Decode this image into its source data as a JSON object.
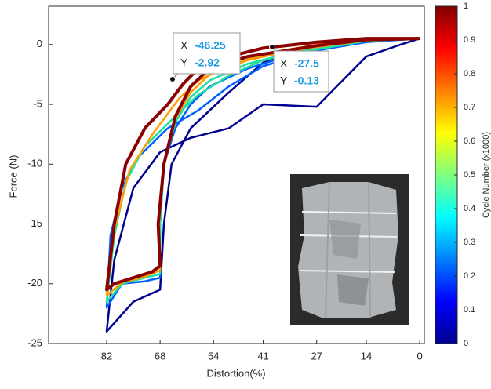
{
  "chart_data": {
    "type": "line",
    "x_label": "Distortion(%)",
    "y_label": "Force (N)",
    "xlim": [
      97.2,
      -1.2
    ],
    "xticks": [
      82,
      68,
      54,
      41,
      27,
      14,
      0
    ],
    "ylim": [
      -25,
      3.2
    ],
    "yticks": [
      0,
      -5,
      -10,
      -15,
      -20,
      -25
    ],
    "series": [
      {
        "color": "#00008f",
        "x": [
          0,
          5,
          14,
          27,
          41,
          50,
          60,
          68,
          75,
          80,
          82,
          75,
          68,
          67,
          65,
          60,
          50,
          41,
          27,
          14,
          0
        ],
        "values": [
          0.5,
          0,
          -1,
          -5.2,
          -5,
          -7,
          -7.8,
          -9,
          -12,
          -18,
          -24,
          -21.5,
          -20.5,
          -15,
          -10,
          -7,
          -4,
          -1.5,
          -0.2,
          0.4,
          0.5
        ]
      },
      {
        "color": "#0060ff",
        "x": [
          0,
          14,
          27,
          41,
          50,
          58,
          66,
          74,
          78,
          81,
          82,
          78,
          72,
          68,
          68,
          67,
          64,
          60,
          55,
          45,
          35,
          27,
          14,
          0
        ],
        "values": [
          0.5,
          0.3,
          -0.5,
          -1.8,
          -3.5,
          -5.5,
          -7,
          -9.5,
          -12,
          -16,
          -22,
          -20,
          -19.8,
          -19.5,
          -15,
          -10,
          -7,
          -5,
          -3.5,
          -2,
          -1,
          -0.5,
          0.2,
          0.5
        ]
      },
      {
        "color": "#20e0a0",
        "x": [
          0,
          14,
          27,
          41,
          50,
          58,
          64,
          72,
          77,
          80,
          82,
          78,
          72,
          68,
          68,
          67,
          64,
          60,
          55,
          45,
          35,
          27,
          14,
          0
        ],
        "values": [
          0.5,
          0.4,
          -0.3,
          -1.3,
          -2.6,
          -4.2,
          -6,
          -8.5,
          -11.5,
          -16,
          -21.5,
          -20,
          -19.5,
          -19.2,
          -15,
          -10,
          -6.5,
          -4.4,
          -3,
          -1.6,
          -0.8,
          -0.4,
          0.3,
          0.5
        ]
      },
      {
        "color": "#ffa000",
        "x": [
          0,
          14,
          27,
          41,
          50,
          58,
          63,
          70,
          76,
          80,
          82,
          78,
          72,
          68,
          68.3,
          67,
          64,
          60,
          55,
          45,
          35,
          27,
          14,
          0
        ],
        "values": [
          0.5,
          0.45,
          0,
          -0.8,
          -1.8,
          -3,
          -4.5,
          -7.5,
          -10.5,
          -15.5,
          -21,
          -19.9,
          -19.4,
          -18.9,
          -15,
          -10,
          -6.2,
          -4,
          -2.5,
          -1.3,
          -0.6,
          -0.2,
          0.35,
          0.5
        ]
      },
      {
        "color": "#8b0000",
        "x": [
          0,
          14,
          27,
          41,
          50,
          58,
          62,
          66,
          72,
          77,
          80,
          82,
          80,
          75,
          70,
          68,
          68.5,
          67,
          64,
          60,
          55,
          45,
          35,
          27,
          14,
          0
        ],
        "values": [
          0.5,
          0.5,
          0.2,
          -0.3,
          -1,
          -2,
          -3.3,
          -5,
          -7,
          -10,
          -15,
          -20.5,
          -20,
          -19.5,
          -19,
          -18.5,
          -15,
          -10,
          -6,
          -3.5,
          -2,
          -1,
          -0.5,
          -0.1,
          0.4,
          0.5
        ]
      }
    ],
    "colorbar": {
      "label": "Cycle Number (x1000)",
      "clim": [
        0,
        1
      ],
      "cticks": [
        0,
        0.1,
        0.2,
        0.3,
        0.4,
        0.5,
        0.6,
        0.7,
        0.8,
        0.9,
        1
      ]
    },
    "datatips": [
      {
        "x_name": "X",
        "x": -46.25,
        "y_name": "Y",
        "y": -2.92
      },
      {
        "x_name": "X",
        "x": -27.5,
        "y_name": "Y",
        "y": -0.13
      }
    ]
  }
}
